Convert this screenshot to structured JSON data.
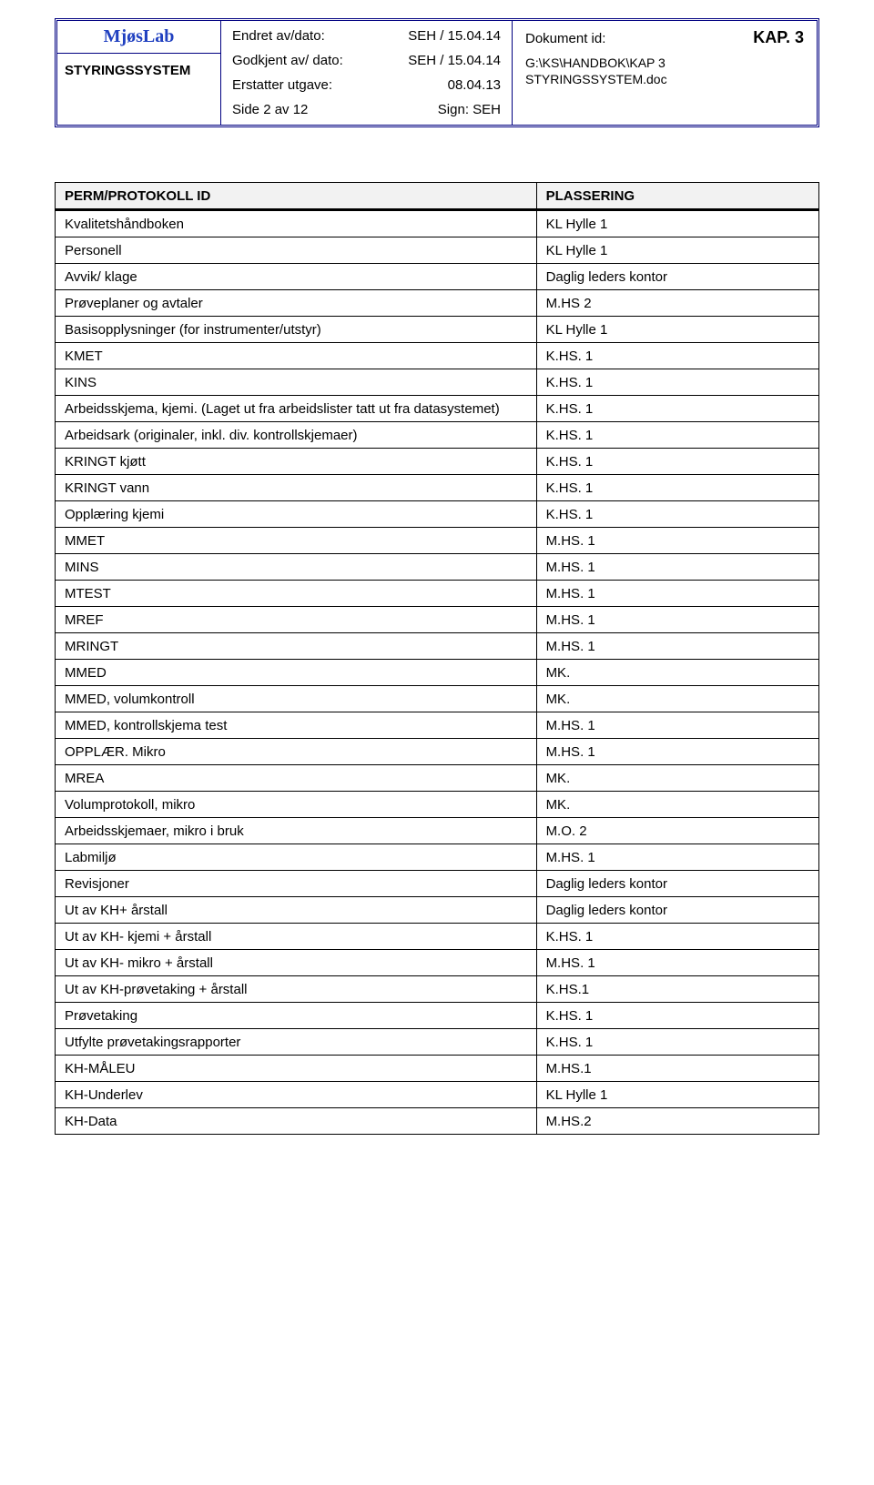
{
  "header": {
    "lab_name": "MjøsLab",
    "subtitle": "STYRINGSSYSTEM",
    "labels": {
      "changed": "Endret av/dato:",
      "approved": "Godkjent av/ dato:",
      "replaces": "Erstatter utgave:",
      "page": "Side 2 av 12",
      "sign": "Sign: SEH",
      "doc_id": "Dokument id:"
    },
    "values": {
      "changed": "SEH / 15.04.14",
      "approved": "SEH / 15.04.14",
      "replaces": "08.04.13"
    },
    "kap": "KAP. 3",
    "filepath1": "G:\\KS\\HANDBOK\\KAP 3",
    "filepath2": "STYRINGSSYSTEM.doc"
  },
  "table": {
    "headers": {
      "id": "PERM/PROTOKOLL ID",
      "place": "PLASSERING"
    },
    "rows": [
      {
        "id": "Kvalitetshåndboken",
        "place": "KL Hylle 1"
      },
      {
        "id": "Personell",
        "place": "KL Hylle 1"
      },
      {
        "id": "Avvik/ klage",
        "place": "Daglig leders kontor"
      },
      {
        "id": "Prøveplaner og avtaler",
        "place": "M.HS 2"
      },
      {
        "id": "Basisopplysninger (for instrumenter/utstyr)",
        "place": "KL Hylle 1"
      },
      {
        "id": "KMET",
        "place": "K.HS. 1"
      },
      {
        "id": "KINS",
        "place": "K.HS. 1"
      },
      {
        "id": "Arbeidsskjema, kjemi. (Laget ut fra arbeidslister tatt ut fra datasystemet)",
        "place": "K.HS. 1"
      },
      {
        "id": "Arbeidsark (originaler, inkl. div. kontrollskjemaer)",
        "place": "K.HS. 1"
      },
      {
        "id": "KRINGT kjøtt",
        "place": "K.HS. 1"
      },
      {
        "id": "KRINGT vann",
        "place": "K.HS. 1"
      },
      {
        "id": "Opplæring kjemi",
        "place": "K.HS. 1"
      },
      {
        "id": "MMET",
        "place": "M.HS. 1"
      },
      {
        "id": "MINS",
        "place": "M.HS. 1"
      },
      {
        "id": "MTEST",
        "place": "M.HS. 1"
      },
      {
        "id": "MREF",
        "place": "M.HS. 1"
      },
      {
        "id": "MRINGT",
        "place": "M.HS. 1"
      },
      {
        "id": "MMED",
        "place": "MK."
      },
      {
        "id": "MMED, volumkontroll",
        "place": "MK."
      },
      {
        "id": "MMED, kontrollskjema test",
        "place": "M.HS. 1"
      },
      {
        "id": "OPPLÆR. Mikro",
        "place": "M.HS. 1"
      },
      {
        "id": "MREA",
        "place": "MK."
      },
      {
        "id": "Volumprotokoll, mikro",
        "place": "MK."
      },
      {
        "id": "Arbeidsskjemaer, mikro i bruk",
        "place": "M.O. 2"
      },
      {
        "id": "Labmiljø",
        "place": "M.HS. 1"
      },
      {
        "id": "Revisjoner",
        "place": "Daglig leders kontor"
      },
      {
        "id": "Ut av KH+ årstall",
        "place": "Daglig leders kontor"
      },
      {
        "id": "Ut av KH- kjemi + årstall",
        "place": "K.HS. 1"
      },
      {
        "id": "Ut av KH- mikro + årstall",
        "place": "M.HS. 1"
      },
      {
        "id": "Ut av KH-prøvetaking + årstall",
        "place": "K.HS.1"
      },
      {
        "id": "Prøvetaking",
        "place": "K.HS. 1"
      },
      {
        "id": "Utfylte prøvetakingsrapporter",
        "place": "K.HS. 1"
      },
      {
        "id": "KH-MÅLEU",
        "place": "M.HS.1"
      },
      {
        "id": "KH-Underlev",
        "place": "KL Hylle 1"
      },
      {
        "id": "KH-Data",
        "place": "M.HS.2"
      }
    ]
  }
}
